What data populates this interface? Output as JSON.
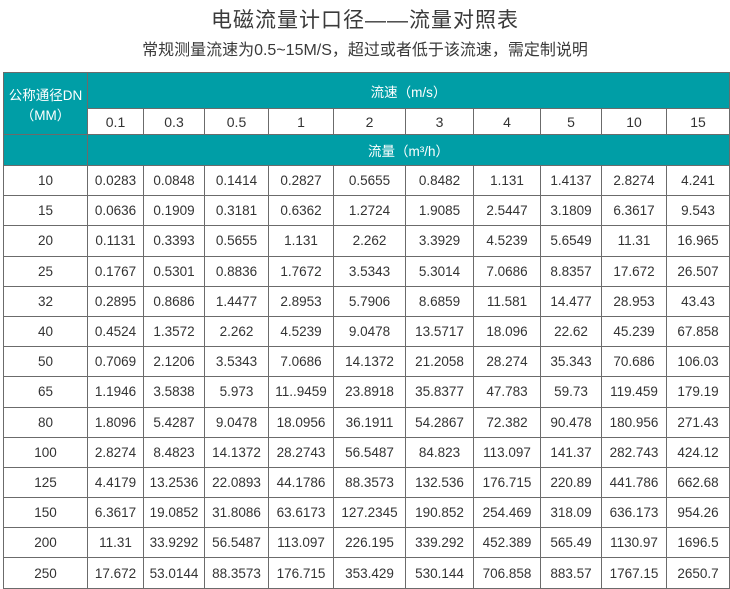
{
  "title": "电磁流量计口径——流量对照表",
  "subtitle": "常规测量流速为0.5~15M/S，超过或者低于该流速，需定制说明",
  "colors": {
    "header_bg": "#009ea6",
    "header_text": "#ffffff",
    "border": "#6b6b6b"
  },
  "table": {
    "dn_header_line1": "公称通径DN",
    "dn_header_line2": "（MM）",
    "velocity_header": "流速（m/s）",
    "flow_header": "流量（m³/h）",
    "velocities": [
      "0.1",
      "0.3",
      "0.5",
      "1",
      "2",
      "3",
      "4",
      "5",
      "10",
      "15"
    ],
    "rows": [
      {
        "dn": "10",
        "values": [
          "0.0283",
          "0.0848",
          "0.1414",
          "0.2827",
          "0.5655",
          "0.8482",
          "1.131",
          "1.4137",
          "2.8274",
          "4.241"
        ]
      },
      {
        "dn": "15",
        "values": [
          "0.0636",
          "0.1909",
          "0.3181",
          "0.6362",
          "1.2724",
          "1.9085",
          "2.5447",
          "3.1809",
          "6.3617",
          "9.543"
        ]
      },
      {
        "dn": "20",
        "values": [
          "0.1131",
          "0.3393",
          "0.5655",
          "1.131",
          "2.262",
          "3.3929",
          "4.5239",
          "5.6549",
          "11.31",
          "16.965"
        ]
      },
      {
        "dn": "25",
        "values": [
          "0.1767",
          "0.5301",
          "0.8836",
          "1.7672",
          "3.5343",
          "5.3014",
          "7.0686",
          "8.8357",
          "17.672",
          "26.507"
        ]
      },
      {
        "dn": "32",
        "values": [
          "0.2895",
          "0.8686",
          "1.4477",
          "2.8953",
          "5.7906",
          "8.6859",
          "11.581",
          "14.477",
          "28.953",
          "43.43"
        ]
      },
      {
        "dn": "40",
        "values": [
          "0.4524",
          "1.3572",
          "2.262",
          "4.5239",
          "9.0478",
          "13.5717",
          "18.096",
          "22.62",
          "45.239",
          "67.858"
        ]
      },
      {
        "dn": "50",
        "values": [
          "0.7069",
          "2.1206",
          "3.5343",
          "7.0686",
          "14.1372",
          "21.2058",
          "28.274",
          "35.343",
          "70.686",
          "106.03"
        ]
      },
      {
        "dn": "65",
        "values": [
          "1.1946",
          "3.5838",
          "5.973",
          "11..9459",
          "23.8918",
          "35.8377",
          "47.783",
          "59.73",
          "119.459",
          "179.19"
        ]
      },
      {
        "dn": "80",
        "values": [
          "1.8096",
          "5.4287",
          "9.0478",
          "18.0956",
          "36.1911",
          "54.2867",
          "72.382",
          "90.478",
          "180.956",
          "271.43"
        ]
      },
      {
        "dn": "100",
        "values": [
          "2.8274",
          "8.4823",
          "14.1372",
          "28.2743",
          "56.5487",
          "84.823",
          "113.097",
          "141.37",
          "282.743",
          "424.12"
        ]
      },
      {
        "dn": "125",
        "values": [
          "4.4179",
          "13.2536",
          "22.0893",
          "44.1786",
          "88.3573",
          "132.536",
          "176.715",
          "220.89",
          "441.786",
          "662.68"
        ]
      },
      {
        "dn": "150",
        "values": [
          "6.3617",
          "19.0852",
          "31.8086",
          "63.6173",
          "127.2345",
          "190.852",
          "254.469",
          "318.09",
          "636.173",
          "954.26"
        ]
      },
      {
        "dn": "200",
        "values": [
          "11.31",
          "33.9292",
          "56.5487",
          "113.097",
          "226.195",
          "339.292",
          "452.389",
          "565.49",
          "1130.97",
          "1696.5"
        ]
      },
      {
        "dn": "250",
        "values": [
          "17.672",
          "53.0144",
          "88.3573",
          "176.715",
          "353.429",
          "530.144",
          "706.858",
          "883.57",
          "1767.15",
          "2650.7"
        ]
      }
    ]
  }
}
